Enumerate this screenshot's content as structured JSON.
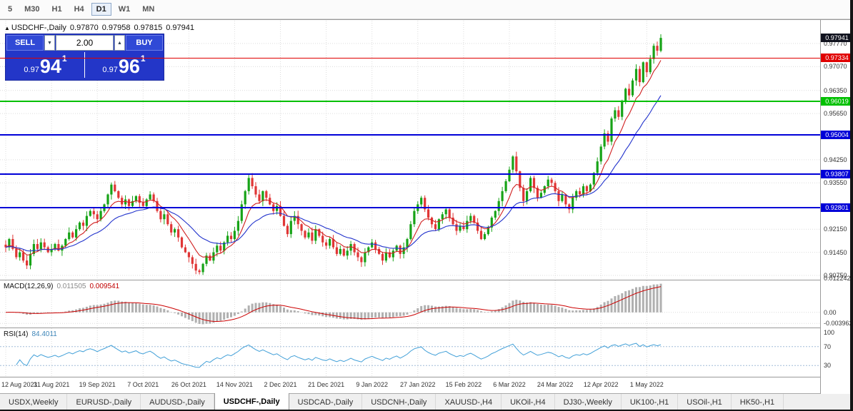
{
  "toolbar": {
    "timeframes": [
      "5",
      "M30",
      "H1",
      "H4",
      "D1",
      "W1",
      "MN"
    ],
    "active": "D1"
  },
  "header": {
    "marker": "▲",
    "symbol": "USDCHF-,Daily",
    "open": "0.97870",
    "high": "0.97958",
    "low": "0.97815",
    "close": "0.97941"
  },
  "trade_panel": {
    "sell_label": "SELL",
    "buy_label": "BUY",
    "volume": "2.00",
    "spin_down": "▼",
    "spin_up": "▲",
    "bid": {
      "prefix": "0.97",
      "big": "94",
      "sup": "1"
    },
    "ask": {
      "prefix": "0.97",
      "big": "96",
      "sup": "1"
    }
  },
  "price_axis": {
    "current": {
      "value": "0.97941",
      "bg": "#11131f"
    },
    "ticks": [
      "0.97770",
      "0.97070",
      "0.96350",
      "0.95650",
      "0.94250",
      "0.93550",
      "0.92150",
      "0.91450",
      "0.90750"
    ],
    "line_badges": [
      {
        "value": "0.97334",
        "color": "#e00000"
      },
      {
        "value": "0.96019",
        "color": "#00c000"
      },
      {
        "value": "0.95004",
        "color": "#0000d8"
      },
      {
        "value": "0.93807",
        "color": "#0000d8"
      },
      {
        "value": "0.92801",
        "color": "#0000d8"
      }
    ]
  },
  "macd_panel": {
    "title": "MACD(12,26,9)",
    "main_value": "0.011505",
    "signal_value": "0.009541",
    "ticks": [
      "0.012242",
      "0.00",
      "-0.003962"
    ]
  },
  "rsi_panel": {
    "title": "RSI(14)",
    "value": "84.4011",
    "ticks": [
      100,
      70,
      30
    ],
    "levels": [
      70,
      30
    ]
  },
  "dates": [
    {
      "label": "12 Aug 2021",
      "bar": 0
    },
    {
      "label": "31 Aug 2021",
      "bar": 13
    },
    {
      "label": "19 Sep 2021",
      "bar": 26
    },
    {
      "label": "7 Oct 2021",
      "bar": 39
    },
    {
      "label": "26 Oct 2021",
      "bar": 52
    },
    {
      "label": "14 Nov 2021",
      "bar": 65
    },
    {
      "label": "2 Dec 2021",
      "bar": 78
    },
    {
      "label": "21 Dec 2021",
      "bar": 91
    },
    {
      "label": "9 Jan 2022",
      "bar": 104
    },
    {
      "label": "27 Jan 2022",
      "bar": 117
    },
    {
      "label": "15 Feb 2022",
      "bar": 130
    },
    {
      "label": "6 Mar 2022",
      "bar": 143
    },
    {
      "label": "24 Mar 2022",
      "bar": 156
    },
    {
      "label": "12 Apr 2022",
      "bar": 169
    },
    {
      "label": "1 May 2022",
      "bar": 182
    }
  ],
  "tabs": [
    "USDX,Weekly",
    "EURUSD-,Daily",
    "AUDUSD-,Daily",
    "USDCHF-,Daily",
    "USDCAD-,Daily",
    "USDCNH-,Daily",
    "XAUUSD-,H4",
    "UKOil-,H4",
    "DJ30-,Weekly",
    "UK100-,H1",
    "USOil-,H1",
    "HK50-,H1"
  ],
  "active_tab": "USDCHF-,Daily",
  "colors": {
    "bull": "#17a317",
    "bear": "#e03636",
    "ma_fast": "#d02020",
    "ma_slow": "#2233cc",
    "macd_hist": "#b0b0b0",
    "macd_signal": "#cc0000",
    "rsi_line": "#42a0d8",
    "rsi_level": "#a0bcd8",
    "grid": "#dcdcdc"
  },
  "chart_data": {
    "type": "candlestick",
    "symbol": "USDCHF",
    "timeframe": "Daily",
    "title": "USDCHF-,Daily",
    "x_start_label": "12 Aug 2021",
    "x_end_label": "1 May 2022",
    "price_axis_range": [
      0.9062,
      0.9846
    ],
    "current_price": 0.97941,
    "ohlc_today": {
      "open": 0.9787,
      "high": 0.97958,
      "low": 0.97815,
      "close": 0.97941
    },
    "closes": [
      0.916,
      0.9185,
      0.9155,
      0.913,
      0.9145,
      0.912,
      0.9105,
      0.914,
      0.917,
      0.9155,
      0.9175,
      0.916,
      0.9145,
      0.9155,
      0.917,
      0.915,
      0.9165,
      0.9185,
      0.9205,
      0.919,
      0.9215,
      0.9235,
      0.9225,
      0.9255,
      0.927,
      0.926,
      0.9245,
      0.927,
      0.929,
      0.932,
      0.935,
      0.933,
      0.931,
      0.929,
      0.9305,
      0.9285,
      0.93,
      0.9315,
      0.9295,
      0.9285,
      0.9305,
      0.932,
      0.93,
      0.927,
      0.9245,
      0.926,
      0.923,
      0.9205,
      0.9215,
      0.919,
      0.916,
      0.9145,
      0.913,
      0.911,
      0.909,
      0.9085,
      0.911,
      0.9135,
      0.912,
      0.9145,
      0.9165,
      0.915,
      0.9175,
      0.9195,
      0.9185,
      0.921,
      0.924,
      0.929,
      0.933,
      0.937,
      0.9345,
      0.932,
      0.93,
      0.933,
      0.931,
      0.929,
      0.927,
      0.9285,
      0.9255,
      0.9225,
      0.92,
      0.924,
      0.9255,
      0.923,
      0.921,
      0.919,
      0.9205,
      0.918,
      0.9215,
      0.9195,
      0.9175,
      0.9165,
      0.9185,
      0.916,
      0.914,
      0.9155,
      0.9135,
      0.915,
      0.917,
      0.9145,
      0.913,
      0.9115,
      0.9145,
      0.916,
      0.9175,
      0.9155,
      0.914,
      0.912,
      0.9145,
      0.913,
      0.915,
      0.9165,
      0.914,
      0.916,
      0.9185,
      0.923,
      0.927,
      0.929,
      0.931,
      0.9275,
      0.925,
      0.923,
      0.9215,
      0.9245,
      0.926,
      0.9275,
      0.925,
      0.923,
      0.921,
      0.9225,
      0.9215,
      0.924,
      0.9255,
      0.9235,
      0.921,
      0.9185,
      0.92,
      0.922,
      0.925,
      0.927,
      0.93,
      0.933,
      0.936,
      0.9395,
      0.9435,
      0.939,
      0.934,
      0.93,
      0.933,
      0.937,
      0.934,
      0.931,
      0.9325,
      0.9345,
      0.9365,
      0.9355,
      0.933,
      0.93,
      0.932,
      0.929,
      0.9275,
      0.931,
      0.933,
      0.932,
      0.9345,
      0.933,
      0.935,
      0.9385,
      0.942,
      0.9465,
      0.9505,
      0.948,
      0.955,
      0.9575,
      0.9555,
      0.96,
      0.964,
      0.962,
      0.9665,
      0.97,
      0.966,
      0.972,
      0.969,
      0.973,
      0.977,
      0.9755,
      0.9794
    ],
    "horizontal_lines": [
      {
        "price": 0.97334,
        "color": "#e00000",
        "width": 1
      },
      {
        "price": 0.96019,
        "color": "#00c000",
        "width": 2
      },
      {
        "price": 0.95004,
        "color": "#0000d8",
        "width": 2
      },
      {
        "price": 0.93807,
        "color": "#0000d8",
        "width": 2
      },
      {
        "price": 0.92801,
        "color": "#0000d8",
        "width": 2
      }
    ],
    "indicators": {
      "macd": {
        "fast": 12,
        "slow": 26,
        "signal": 9,
        "current_main": 0.011505,
        "current_signal": 0.009541
      },
      "rsi": {
        "period": 14,
        "current": 84.4011,
        "levels": [
          70,
          30
        ]
      }
    }
  }
}
